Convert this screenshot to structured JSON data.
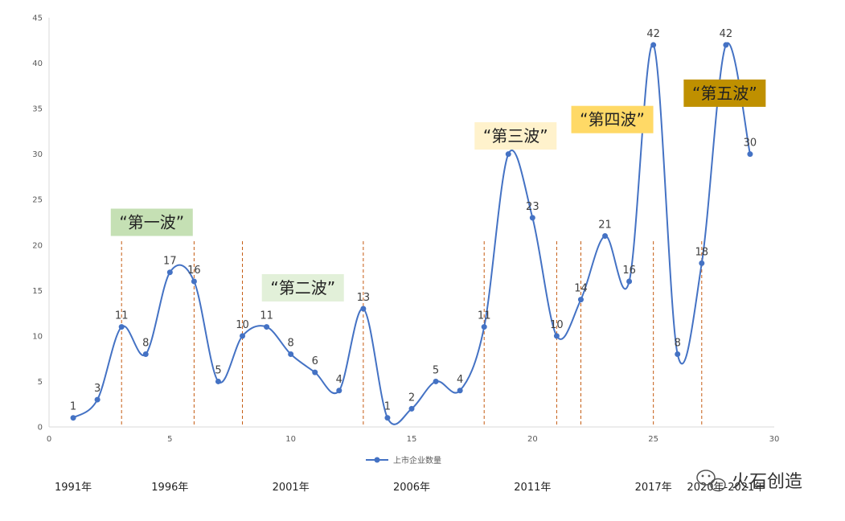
{
  "chart_data": {
    "type": "line",
    "smooth": true,
    "title": "",
    "xlabel": "",
    "ylabel": "",
    "xlim": [
      0,
      30
    ],
    "ylim": [
      0,
      45
    ],
    "x_ticks": [
      0,
      5,
      10,
      15,
      20,
      25,
      30
    ],
    "y_ticks": [
      0,
      5,
      10,
      15,
      20,
      25,
      30,
      35,
      40,
      45
    ],
    "grid": false,
    "legend_position": "bottom",
    "series": [
      {
        "name": "上市企业数量",
        "color": "#4472c4",
        "x": [
          1,
          2,
          3,
          4,
          5,
          6,
          7,
          8,
          9,
          10,
          11,
          12,
          13,
          14,
          15,
          16,
          17,
          18,
          19,
          20,
          21,
          22,
          23,
          24,
          25,
          26,
          27,
          28,
          29
        ],
        "values": [
          1,
          3,
          11,
          8,
          17,
          16,
          5,
          10,
          11,
          8,
          6,
          4,
          13,
          1,
          2,
          5,
          4,
          11,
          30,
          23,
          10,
          14,
          21,
          16,
          42,
          8,
          18,
          42,
          30
        ]
      }
    ],
    "data_labels": [
      "1",
      "3",
      "11",
      "8",
      "17",
      "16",
      "5",
      "10",
      "11",
      "8",
      "6",
      "4",
      "13",
      "1",
      "2",
      "5",
      "4",
      "11",
      "30",
      "23",
      "10",
      "14",
      "21",
      "16",
      "42",
      "8",
      "18",
      "42",
      "30"
    ],
    "year_labels": [
      {
        "x": 1,
        "text": "1991年"
      },
      {
        "x": 5,
        "text": "1996年"
      },
      {
        "x": 10,
        "text": "2001年"
      },
      {
        "x": 15,
        "text": "2006年"
      },
      {
        "x": 20,
        "text": "2011年"
      },
      {
        "x": 25,
        "text": "2017年"
      },
      {
        "x": 28,
        "text": "2020年-2021年"
      }
    ],
    "divider_x": [
      3,
      6,
      8,
      13,
      18,
      21,
      22,
      25,
      27
    ],
    "divider_color": "#c55a11",
    "waves": [
      {
        "text": "“第一波”",
        "x_center": 4.25,
        "y_center": 22.5,
        "bg": "#c5e0b4",
        "color": "#222222"
      },
      {
        "text": "“第二波”",
        "x_center": 10.5,
        "y_center": 15.3,
        "bg": "#e2f0d9",
        "color": "#222222"
      },
      {
        "text": "“第三波”",
        "x_center": 19.3,
        "y_center": 32.0,
        "bg": "#fff2cc",
        "color": "#222222"
      },
      {
        "text": "“第四波”",
        "x_center": 23.3,
        "y_center": 33.8,
        "bg": "#ffd966",
        "color": "#222222"
      },
      {
        "text": "“第五波”",
        "x_center": 27.95,
        "y_center": 36.7,
        "bg": "#bf9000",
        "color": "#222222"
      }
    ]
  },
  "watermark": {
    "text": "火石创造"
  }
}
